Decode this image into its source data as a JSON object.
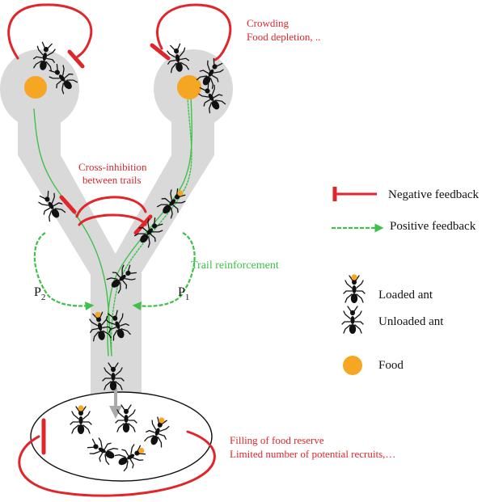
{
  "annotations": {
    "crowding": "Crowding",
    "food_depletion": "Food depletion, ..",
    "cross_inhibition_line1": "Cross-inhibition",
    "cross_inhibition_line2": "between trails",
    "trail_reinforcement": "Trail reinforcement",
    "filling_reserve": "Filling of food reserve",
    "limited_recruits": "Limited number of potential recruits,…"
  },
  "paths": {
    "p2_letter": "P",
    "p2_sub": "2",
    "p1_letter": "P",
    "p1_sub": "1"
  },
  "legend": {
    "negative_feedback": "Negative feedback",
    "positive_feedback": "Positive feedback",
    "loaded_ant": "Loaded ant",
    "unloaded_ant": "Unloaded ant",
    "food": "Food"
  },
  "colors": {
    "negative": "#e0262b",
    "positive": "#3fc04a",
    "trail": "#d9d9d9",
    "food": "#f5a623",
    "ant": "#111111"
  }
}
